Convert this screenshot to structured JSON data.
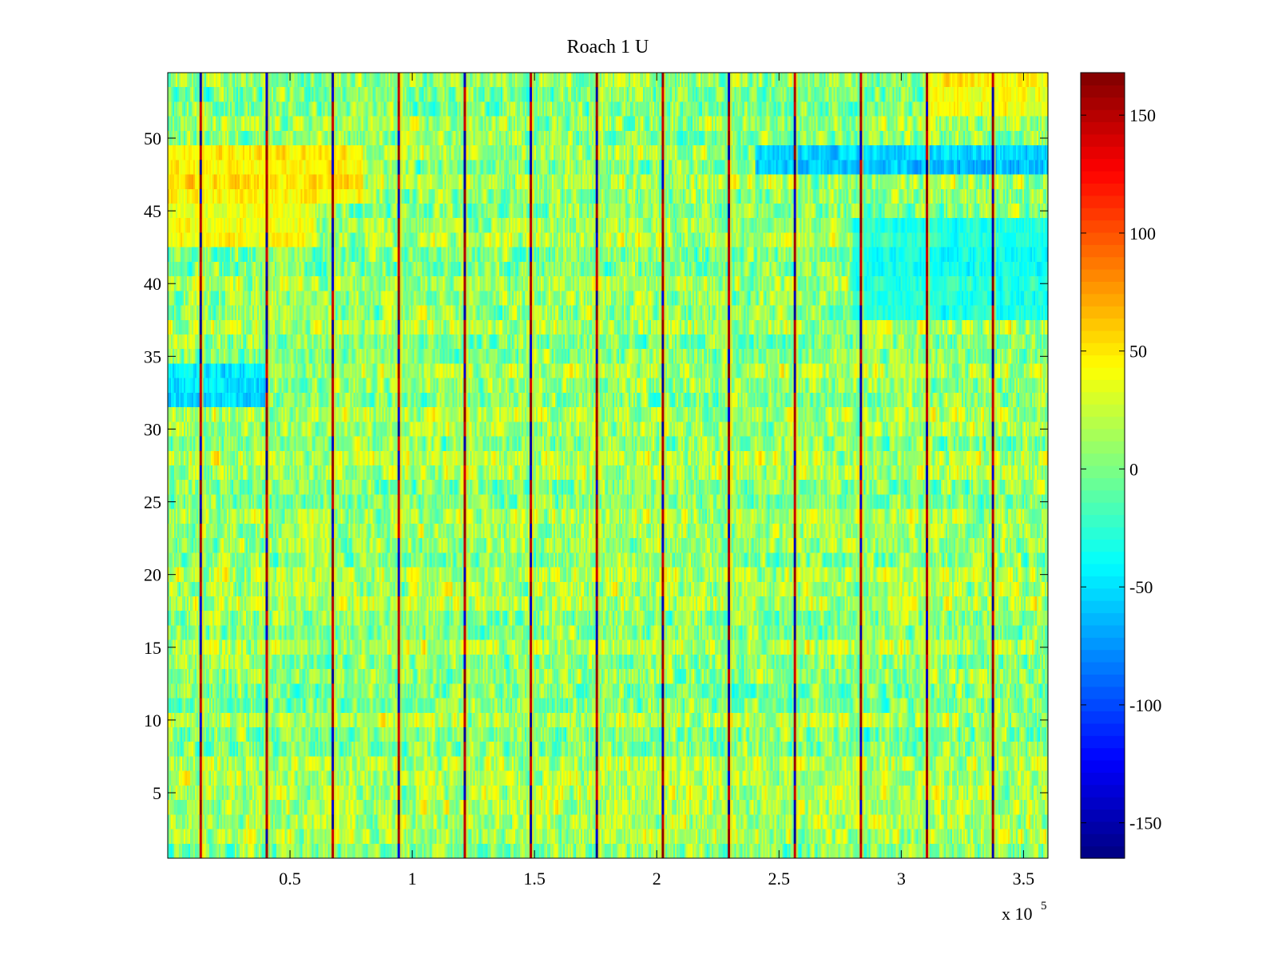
{
  "chart_data": {
    "type": "heatmap",
    "title": "Roach 1 U",
    "xlabel": "",
    "ylabel": "",
    "x_multiplier_label": {
      "base": "x 10",
      "exponent": "5"
    },
    "xlim": [
      0.0,
      3.6
    ],
    "ylim": [
      0.5,
      54.5
    ],
    "x_ticks": [
      0.5,
      1,
      1.5,
      2,
      2.5,
      3,
      3.5
    ],
    "x_tick_labels": [
      "0.5",
      "1",
      "1.5",
      "2",
      "2.5",
      "3",
      "3.5"
    ],
    "y_ticks": [
      5,
      10,
      15,
      20,
      25,
      30,
      35,
      40,
      45,
      50
    ],
    "y_tick_labels": [
      "5",
      "10",
      "15",
      "20",
      "25",
      "30",
      "35",
      "40",
      "45",
      "50"
    ],
    "rows": 54,
    "colorbar": {
      "colormap": "jet",
      "clim": [
        -165,
        168
      ],
      "ticks": [
        -150,
        -100,
        -50,
        0,
        50,
        100,
        150
      ],
      "tick_labels": [
        "-150",
        "-100",
        "-50",
        "0",
        "50",
        "100",
        "150"
      ]
    },
    "stripe_x_positions": [
      0.135,
      0.405,
      0.675,
      0.945,
      1.215,
      1.485,
      1.755,
      2.025,
      2.295,
      2.565,
      2.835,
      3.105,
      3.375
    ],
    "stripe_value_range": [
      -160,
      165
    ],
    "background_value_range": [
      -60,
      60
    ],
    "regions": [
      {
        "desc": "warm band upper-left",
        "x": [
          0.0,
          0.8
        ],
        "rows": [
          46,
          49
        ],
        "mean": 45
      },
      {
        "desc": "warm band left",
        "x": [
          0.0,
          0.6
        ],
        "rows": [
          43,
          45
        ],
        "mean": 35
      },
      {
        "desc": "cool band left",
        "x": [
          0.0,
          0.4
        ],
        "rows": [
          32,
          34
        ],
        "mean": -55
      },
      {
        "desc": "cool band right",
        "x": [
          2.4,
          3.6
        ],
        "rows": [
          48,
          49
        ],
        "mean": -60
      },
      {
        "desc": "cool band right mid",
        "x": [
          2.8,
          3.6
        ],
        "rows": [
          38,
          44
        ],
        "mean": -35
      },
      {
        "desc": "warm band top-right",
        "x": [
          3.1,
          3.6
        ],
        "rows": [
          52,
          54
        ],
        "mean": 40
      }
    ]
  }
}
